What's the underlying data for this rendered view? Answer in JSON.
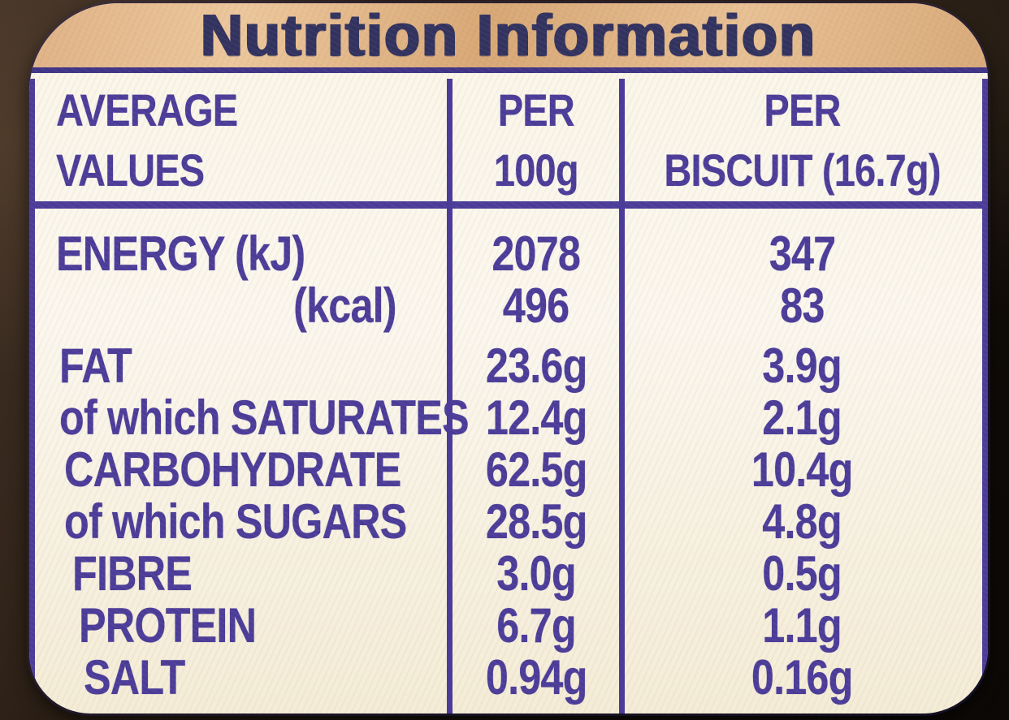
{
  "title": "Nutrition Information",
  "table": {
    "header": {
      "average_values": "AVERAGE\nVALUES",
      "per_100g": "PER\n100g",
      "per_biscuit": "PER\nBISCUIT (16.7g)"
    },
    "rows": [
      {
        "name": "ENERGY (kJ)",
        "per_100g": "2078",
        "per_biscuit": "347",
        "indent": false
      },
      {
        "name": "(kcal)",
        "per_100g": "496",
        "per_biscuit": "83",
        "indent": true
      },
      {
        "name": "FAT",
        "per_100g": "23.6g",
        "per_biscuit": "3.9g",
        "indent": false
      },
      {
        "name": "of which SATURATES",
        "per_100g": "12.4g",
        "per_biscuit": "2.1g",
        "indent": false
      },
      {
        "name": "CARBOHYDRATE",
        "per_100g": "62.5g",
        "per_biscuit": "10.4g",
        "indent": false
      },
      {
        "name": "of which SUGARS",
        "per_100g": "28.5g",
        "per_biscuit": "4.8g",
        "indent": false
      },
      {
        "name": "FIBRE",
        "per_100g": "3.0g",
        "per_biscuit": "0.5g",
        "indent": false
      },
      {
        "name": "PROTEIN",
        "per_100g": "6.7g",
        "per_biscuit": "1.1g",
        "indent": false
      },
      {
        "name": "SALT",
        "per_100g": "0.94g",
        "per_biscuit": "0.16g",
        "indent": false
      }
    ]
  },
  "colors": {
    "ink_blue": "#4b3c99",
    "title_navy": "#31325f",
    "band_tan": "#dcae80",
    "panel_cream": "#faf6e8",
    "background_dark": "#1c130c"
  }
}
